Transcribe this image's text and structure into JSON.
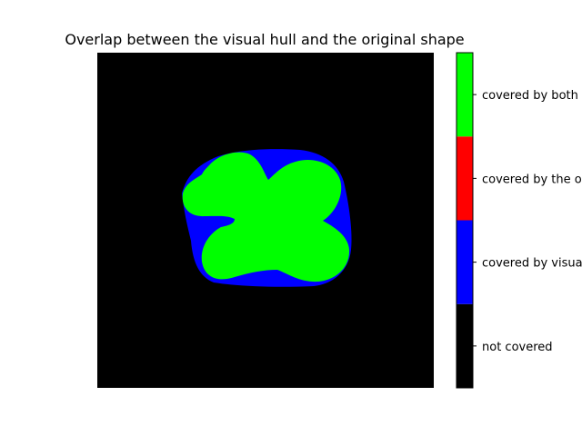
{
  "chart_data": {
    "type": "heatmap",
    "title": "Overlap between the visual hull and the original shape",
    "axes_visible": false,
    "colorbar": {
      "position": "right",
      "categories": [
        {
          "label": "not covered",
          "color": "#000000"
        },
        {
          "label": "covered by visual hull",
          "color": "#0000ff"
        },
        {
          "label": "covered by the original shape",
          "color": "#ff0000"
        },
        {
          "label": "covered by both",
          "color": "#00ff00"
        }
      ]
    },
    "regions": [
      {
        "category": "covered by visual hull",
        "color": "#0000ff"
      },
      {
        "category": "covered by both",
        "color": "#00ff00"
      }
    ]
  }
}
